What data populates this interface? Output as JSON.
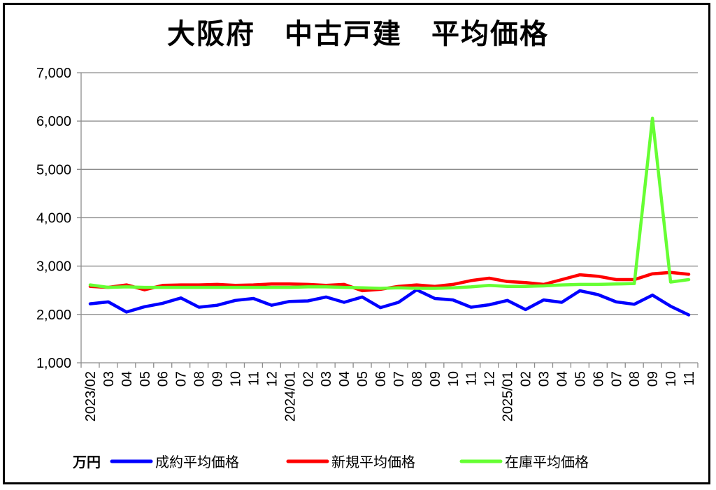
{
  "chart_data": {
    "type": "line",
    "title": "大阪府　中古戸建　平均価格",
    "unit": "万円",
    "ylim": [
      1000,
      7000
    ],
    "yticks": [
      "1,000",
      "2,000",
      "3,000",
      "4,000",
      "5,000",
      "6,000",
      "7,000"
    ],
    "grid": true,
    "legend_position": "bottom",
    "categories": [
      "2023/02",
      "03",
      "04",
      "05",
      "06",
      "07",
      "08",
      "09",
      "10",
      "11",
      "12",
      "2024/01",
      "02",
      "03",
      "04",
      "05",
      "06",
      "07",
      "08",
      "09",
      "10",
      "11",
      "12",
      "2025/01",
      "02",
      "03",
      "04",
      "05",
      "06",
      "07",
      "08",
      "09",
      "10",
      "11"
    ],
    "series": [
      {
        "name": "成約平均価格",
        "color": "#0000FF",
        "values": [
          2220,
          2260,
          2050,
          2160,
          2230,
          2340,
          2150,
          2190,
          2290,
          2330,
          2190,
          2270,
          2280,
          2360,
          2250,
          2360,
          2140,
          2250,
          2510,
          2330,
          2300,
          2150,
          2200,
          2290,
          2100,
          2300,
          2250,
          2490,
          2410,
          2260,
          2210,
          2400,
          2170,
          1990
        ]
      },
      {
        "name": "新規平均価格",
        "color": "#FF0000",
        "values": [
          2580,
          2560,
          2610,
          2510,
          2600,
          2610,
          2610,
          2620,
          2600,
          2610,
          2630,
          2630,
          2620,
          2600,
          2620,
          2490,
          2520,
          2580,
          2610,
          2580,
          2620,
          2700,
          2750,
          2680,
          2660,
          2620,
          2720,
          2820,
          2790,
          2720,
          2720,
          2840,
          2870,
          2830
        ]
      },
      {
        "name": "在庫平均価格",
        "color": "#66FF33",
        "values": [
          2610,
          2560,
          2570,
          2560,
          2560,
          2560,
          2560,
          2560,
          2560,
          2560,
          2560,
          2560,
          2570,
          2570,
          2560,
          2550,
          2540,
          2550,
          2540,
          2540,
          2550,
          2570,
          2600,
          2580,
          2580,
          2590,
          2610,
          2620,
          2620,
          2630,
          2640,
          6060,
          2670,
          2720
        ]
      }
    ]
  }
}
